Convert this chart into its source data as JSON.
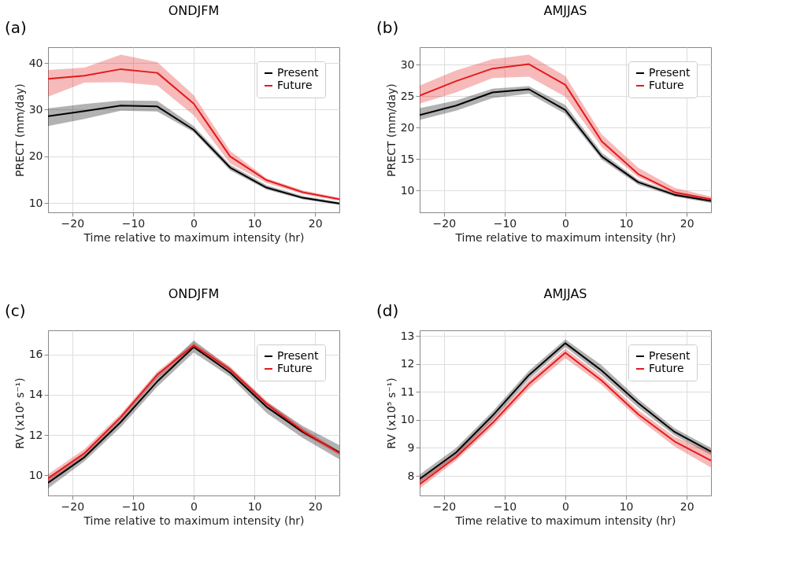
{
  "chart_data": [
    {
      "type": "line",
      "annotations": [
        "(a)"
      ],
      "title": "ONDJFM",
      "xlabel": "Time relative to maximum intensity (hr)",
      "ylabel": "PRECT (mm/day)",
      "x": [
        -24,
        -18,
        -12,
        -6,
        0,
        6,
        12,
        18,
        24
      ],
      "xlim": [
        -24,
        24
      ],
      "xticks": [
        -20,
        -10,
        0,
        10,
        20
      ],
      "ylim": [
        8,
        43.4
      ],
      "yticks": [
        10,
        20,
        30,
        40
      ],
      "grid": true,
      "legend": "top right",
      "line_style": "solid",
      "marker": "none",
      "series": [
        {
          "name": "Present",
          "color": "#000000",
          "values": [
            28.6,
            29.7,
            30.9,
            30.7,
            25.7,
            17.6,
            13.3,
            11.1,
            9.9
          ],
          "lower": [
            26.5,
            28.0,
            29.8,
            29.6,
            25.2,
            17.0,
            12.9,
            10.8,
            9.6
          ],
          "upper": [
            30.3,
            31.2,
            32.0,
            31.9,
            26.5,
            18.2,
            13.8,
            11.5,
            10.2
          ]
        },
        {
          "name": "Future",
          "color": "#e41a1c",
          "values": [
            36.6,
            37.3,
            38.7,
            37.9,
            31.3,
            20.0,
            14.9,
            12.3,
            10.8
          ],
          "lower": [
            32.8,
            35.8,
            35.9,
            35.2,
            28.8,
            18.5,
            14.3,
            11.9,
            10.5
          ],
          "upper": [
            38.5,
            39.0,
            41.8,
            40.2,
            33.1,
            21.2,
            15.3,
            12.7,
            11.1
          ]
        }
      ]
    },
    {
      "type": "line",
      "annotations": [
        "(b)"
      ],
      "title": "AMJJAS",
      "xlabel": "Time relative to maximum intensity (hr)",
      "ylabel": "PRECT (mm/day)",
      "x": [
        -24,
        -18,
        -12,
        -6,
        0,
        6,
        12,
        18,
        24
      ],
      "xlim": [
        -24,
        24
      ],
      "xticks": [
        -20,
        -10,
        0,
        10,
        20
      ],
      "ylim": [
        6.5,
        32.8
      ],
      "yticks": [
        10,
        15,
        20,
        25,
        30
      ],
      "grid": true,
      "legend": "top right",
      "line_style": "solid",
      "marker": "none",
      "series": [
        {
          "name": "Present",
          "color": "#000000",
          "values": [
            22.0,
            23.5,
            25.6,
            26.1,
            22.8,
            15.4,
            11.3,
            9.3,
            8.3
          ],
          "lower": [
            21.2,
            22.7,
            24.7,
            25.4,
            22.2,
            14.9,
            10.9,
            9.0,
            8.0
          ],
          "upper": [
            23.1,
            24.3,
            26.2,
            26.6,
            23.6,
            16.0,
            11.7,
            9.6,
            8.6
          ]
        },
        {
          "name": "Future",
          "color": "#e41a1c",
          "values": [
            25.1,
            27.4,
            29.4,
            30.1,
            26.8,
            17.8,
            12.6,
            9.7,
            8.6
          ],
          "lower": [
            23.8,
            25.6,
            27.9,
            28.1,
            24.9,
            16.9,
            12.1,
            9.4,
            8.3
          ],
          "upper": [
            26.7,
            29.1,
            30.9,
            31.6,
            28.2,
            18.9,
            13.6,
            10.4,
            9.0
          ]
        }
      ]
    },
    {
      "type": "line",
      "annotations": [
        "(c)"
      ],
      "title": "ONDJFM",
      "xlabel": "Time relative to maximum intensity (hr)",
      "ylabel": "RV (x10⁵ s⁻¹)",
      "x": [
        -24,
        -18,
        -12,
        -6,
        0,
        6,
        12,
        18,
        24
      ],
      "xlim": [
        -24,
        24
      ],
      "xticks": [
        -20,
        -10,
        0,
        10,
        20
      ],
      "ylim": [
        9,
        17.2
      ],
      "yticks": [
        10,
        12,
        14,
        16
      ],
      "grid": true,
      "legend": "top right",
      "line_style": "solid",
      "marker": "none",
      "series": [
        {
          "name": "Present",
          "color": "#000000",
          "values": [
            9.63,
            10.9,
            12.65,
            14.66,
            16.37,
            15.1,
            13.4,
            12.15,
            11.14
          ],
          "lower": [
            9.35,
            10.7,
            12.4,
            14.4,
            16.1,
            14.9,
            13.1,
            11.85,
            10.8
          ],
          "upper": [
            9.9,
            11.15,
            12.9,
            14.95,
            16.7,
            15.35,
            13.65,
            12.45,
            11.5
          ]
        },
        {
          "name": "Future",
          "color": "#e41a1c",
          "values": [
            9.85,
            11.1,
            12.9,
            15.0,
            16.45,
            15.25,
            13.55,
            12.2,
            11.1
          ],
          "lower": [
            9.65,
            10.95,
            12.75,
            14.8,
            16.3,
            15.1,
            13.4,
            12.05,
            11.0
          ],
          "upper": [
            10.05,
            11.3,
            13.05,
            15.15,
            16.6,
            15.4,
            13.7,
            12.35,
            11.2
          ]
        }
      ]
    },
    {
      "type": "line",
      "annotations": [
        "(d)"
      ],
      "title": "AMJJAS",
      "xlabel": "Time relative to maximum intensity (hr)",
      "ylabel": "RV (x10⁵ s⁻¹)",
      "x": [
        -24,
        -18,
        -12,
        -6,
        0,
        6,
        12,
        18,
        24
      ],
      "xlim": [
        -24,
        24
      ],
      "xticks": [
        -20,
        -10,
        0,
        10,
        20
      ],
      "ylim": [
        7.3,
        13.2
      ],
      "yticks": [
        8,
        9,
        10,
        11,
        12,
        13
      ],
      "grid": true,
      "legend": "top right",
      "line_style": "solid",
      "marker": "none",
      "series": [
        {
          "name": "Present",
          "color": "#000000",
          "values": [
            7.89,
            8.84,
            10.15,
            11.6,
            12.74,
            11.76,
            10.6,
            9.57,
            8.87
          ],
          "lower": [
            7.75,
            8.7,
            10.0,
            11.45,
            12.6,
            11.6,
            10.45,
            9.45,
            8.75
          ],
          "upper": [
            8.05,
            9.0,
            10.3,
            11.75,
            12.88,
            11.95,
            10.75,
            9.7,
            9.0
          ]
        },
        {
          "name": "Future",
          "color": "#e41a1c",
          "values": [
            7.7,
            8.67,
            9.89,
            11.28,
            12.4,
            11.4,
            10.2,
            9.23,
            8.55
          ],
          "lower": [
            7.55,
            8.55,
            9.75,
            11.12,
            12.2,
            11.25,
            10.05,
            9.05,
            8.3
          ],
          "upper": [
            7.85,
            8.82,
            10.05,
            11.42,
            12.55,
            11.55,
            10.35,
            9.4,
            8.85
          ]
        }
      ]
    }
  ]
}
